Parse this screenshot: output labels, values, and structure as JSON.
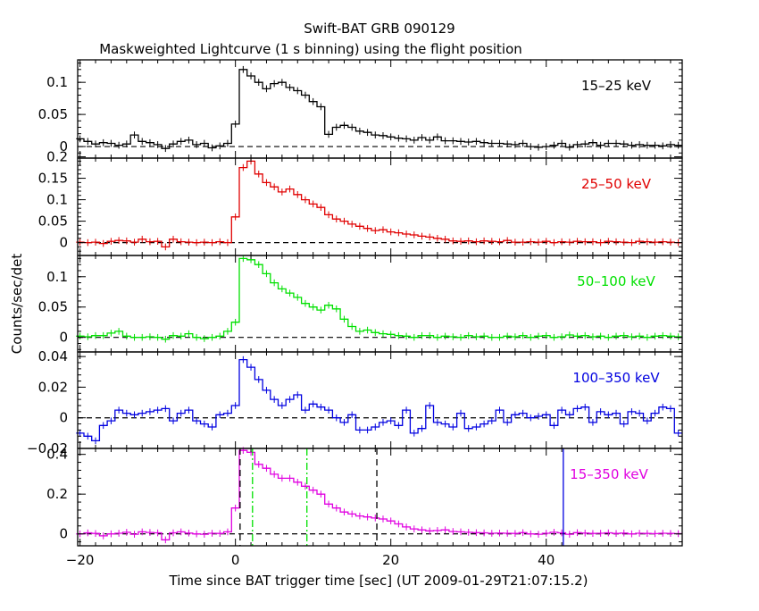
{
  "chart_data": {
    "type": "line",
    "title": "Swift-BAT GRB 090129",
    "subtitle": "Maskweighted Lightcurve (1 s binning) using the flight position",
    "xlabel": "Time since BAT trigger time [sec] (UT 2009-01-29T21:07:15.2)",
    "ylabel": "Counts/sec/det",
    "xlim": [
      -20.3,
      57.5
    ],
    "x_ticks": [
      -20,
      0,
      20,
      40
    ],
    "x_tick_labels": [
      "−20",
      "0",
      "20",
      "40"
    ],
    "colors": {
      "15-25": "#000000",
      "25-50": "#e00000",
      "50-100": "#00e000",
      "100-350": "#0000e0",
      "15-350": "#e000e0"
    },
    "x": [
      -20,
      -19,
      -18,
      -17,
      -16,
      -15,
      -14,
      -13,
      -12,
      -11,
      -10,
      -9,
      -8,
      -7,
      -6,
      -5,
      -4,
      -3,
      -2,
      -1,
      0,
      1,
      2,
      3,
      4,
      5,
      6,
      7,
      8,
      9,
      10,
      11,
      12,
      13,
      14,
      15,
      16,
      17,
      18,
      19,
      20,
      21,
      22,
      23,
      24,
      25,
      26,
      27,
      28,
      29,
      30,
      31,
      32,
      33,
      34,
      35,
      36,
      37,
      38,
      39,
      40,
      41,
      42,
      43,
      44,
      45,
      46,
      47,
      48,
      49,
      50,
      51,
      52,
      53,
      54,
      55,
      56,
      57
    ],
    "panels": [
      {
        "name": "15–25 keV",
        "color": "#000000",
        "ylim": [
          -0.018,
          0.135
        ],
        "yticks": [
          0,
          0.05,
          0.1
        ],
        "ytick_labels": [
          "0",
          "0.05",
          "0.1"
        ],
        "values": [
          0.012,
          0.008,
          0.004,
          0.006,
          0.005,
          0.002,
          0.004,
          0.018,
          0.008,
          0.006,
          0.003,
          -0.003,
          0.004,
          0.008,
          0.01,
          0.003,
          0.005,
          -0.002,
          0.001,
          0.005,
          0.035,
          0.12,
          0.11,
          0.1,
          0.09,
          0.098,
          0.1,
          0.092,
          0.087,
          0.08,
          0.07,
          0.062,
          0.019,
          0.03,
          0.033,
          0.03,
          0.024,
          0.022,
          0.018,
          0.017,
          0.015,
          0.013,
          0.012,
          0.01,
          0.014,
          0.01,
          0.015,
          0.009,
          0.009,
          0.008,
          0.007,
          0.008,
          0.006,
          0.005,
          0.005,
          0.004,
          0.003,
          0.005,
          0.0,
          -0.001,
          0.0,
          0.002,
          0.005,
          -0.001,
          0.003,
          0.004,
          0.006,
          0.002,
          0.005,
          0.005,
          0.004,
          0.002,
          0.003,
          0.002,
          0.002,
          0.001,
          0.003,
          0.002
        ]
      },
      {
        "name": "25–50 keV",
        "color": "#e00000",
        "ylim": [
          -0.03,
          0.197
        ],
        "yticks": [
          0,
          0.05,
          0.1,
          0.15,
          0.2
        ],
        "ytick_labels": [
          "0",
          "0.05",
          "0.1",
          "0.15",
          "0.2"
        ],
        "values": [
          0.001,
          0.0,
          0.001,
          -0.002,
          0.003,
          0.005,
          0.004,
          0.001,
          0.008,
          0.002,
          0.003,
          -0.01,
          0.008,
          0.002,
          0.001,
          0.0,
          0.001,
          0.0,
          0.002,
          0.0,
          0.06,
          0.175,
          0.19,
          0.16,
          0.14,
          0.13,
          0.118,
          0.125,
          0.112,
          0.1,
          0.09,
          0.082,
          0.065,
          0.055,
          0.05,
          0.043,
          0.038,
          0.033,
          0.028,
          0.03,
          0.025,
          0.023,
          0.02,
          0.018,
          0.015,
          0.013,
          0.01,
          0.008,
          0.004,
          0.003,
          0.004,
          0.002,
          0.004,
          0.003,
          0.002,
          0.005,
          0.001,
          0.001,
          0.002,
          0.001,
          0.003,
          0.0,
          0.002,
          0.001,
          0.003,
          0.002,
          0.002,
          0.0,
          0.003,
          0.002,
          0.001,
          0.0,
          0.003,
          0.002,
          0.001,
          0.002,
          0.001,
          0.0
        ]
      },
      {
        "name": "50–100 keV",
        "color": "#00e000",
        "ylim": [
          -0.024,
          0.135
        ],
        "yticks": [
          0,
          0.05,
          0.1
        ],
        "ytick_labels": [
          "0",
          "0.05",
          "0.1"
        ],
        "values": [
          0.002,
          0.001,
          0.003,
          0.003,
          0.007,
          0.01,
          0.002,
          0.0,
          0.0,
          0.001,
          0.0,
          -0.003,
          0.003,
          0.002,
          0.006,
          0.0,
          -0.002,
          0.0,
          0.002,
          0.01,
          0.025,
          0.13,
          0.128,
          0.12,
          0.105,
          0.09,
          0.08,
          0.073,
          0.066,
          0.056,
          0.05,
          0.045,
          0.053,
          0.047,
          0.03,
          0.018,
          0.01,
          0.012,
          0.008,
          0.006,
          0.005,
          0.003,
          0.002,
          0.0,
          0.003,
          0.003,
          0.0,
          0.002,
          0.001,
          0.0,
          0.003,
          0.001,
          0.002,
          0.0,
          0.0,
          0.002,
          0.001,
          0.003,
          0.0,
          0.002,
          0.003,
          0.0,
          0.001,
          0.004,
          0.002,
          0.003,
          0.001,
          0.002,
          0.0,
          0.002,
          0.003,
          0.001,
          0.002,
          0.0,
          0.002,
          0.003,
          0.002,
          0.001
        ]
      },
      {
        "name": "100–350 keV",
        "color": "#0000e0",
        "ylim": [
          -0.02,
          0.043
        ],
        "yticks": [
          -0.02,
          0,
          0.02,
          0.04
        ],
        "ytick_labels": [
          "−0.02",
          "0",
          "0.02",
          "0.04"
        ],
        "values": [
          -0.01,
          -0.012,
          -0.015,
          -0.005,
          -0.002,
          0.005,
          0.003,
          0.002,
          0.003,
          0.004,
          0.005,
          0.006,
          -0.002,
          0.003,
          0.005,
          -0.002,
          -0.004,
          -0.006,
          0.002,
          0.003,
          0.008,
          0.038,
          0.033,
          0.025,
          0.018,
          0.012,
          0.008,
          0.012,
          0.015,
          0.005,
          0.009,
          0.007,
          0.005,
          0.0,
          -0.003,
          0.002,
          -0.008,
          -0.008,
          -0.006,
          -0.003,
          -0.002,
          -0.005,
          0.005,
          -0.01,
          -0.007,
          0.008,
          -0.003,
          -0.004,
          -0.006,
          0.003,
          -0.007,
          -0.006,
          -0.004,
          -0.002,
          0.005,
          -0.003,
          0.002,
          0.003,
          0.0,
          0.001,
          0.002,
          -0.005,
          0.005,
          0.002,
          0.006,
          0.007,
          -0.003,
          0.004,
          0.002,
          0.003,
          -0.004,
          0.004,
          0.003,
          -0.002,
          0.003,
          0.007,
          0.006,
          -0.01
        ]
      },
      {
        "name": "15–350 keV",
        "color": "#e000e0",
        "ylim": [
          -0.06,
          0.43
        ],
        "yticks": [
          0,
          0.2,
          0.4
        ],
        "ytick_labels": [
          "0",
          "0.2",
          "0.4"
        ],
        "values": [
          0.0,
          0.005,
          0.002,
          -0.01,
          0.0,
          0.003,
          0.008,
          -0.002,
          0.01,
          0.007,
          0.005,
          -0.03,
          0.005,
          0.01,
          0.004,
          0.0,
          -0.002,
          0.003,
          0.002,
          0.01,
          0.13,
          0.42,
          0.41,
          0.35,
          0.33,
          0.3,
          0.28,
          0.28,
          0.26,
          0.24,
          0.22,
          0.2,
          0.15,
          0.13,
          0.11,
          0.1,
          0.09,
          0.085,
          0.08,
          0.075,
          0.065,
          0.05,
          0.035,
          0.025,
          0.02,
          0.015,
          0.017,
          0.02,
          0.012,
          0.01,
          0.008,
          0.006,
          0.005,
          0.003,
          0.004,
          0.003,
          0.002,
          0.006,
          0.0,
          -0.002,
          0.003,
          0.008,
          0.005,
          -0.002,
          0.006,
          0.004,
          0.002,
          0.003,
          0.005,
          0.002,
          0.004,
          0.0,
          0.003,
          0.002,
          0.001,
          0.003,
          0.002,
          0.001
        ],
        "markers": [
          {
            "x": 0.6,
            "color": "#000000",
            "style": "dashed"
          },
          {
            "x": 2.2,
            "color": "#00e000",
            "style": "dashdot"
          },
          {
            "x": 9.2,
            "color": "#00e000",
            "style": "dashdot"
          },
          {
            "x": 18.2,
            "color": "#000000",
            "style": "dashed"
          },
          {
            "x": 42.2,
            "color": "#0000e0",
            "style": "solid"
          }
        ]
      }
    ]
  }
}
